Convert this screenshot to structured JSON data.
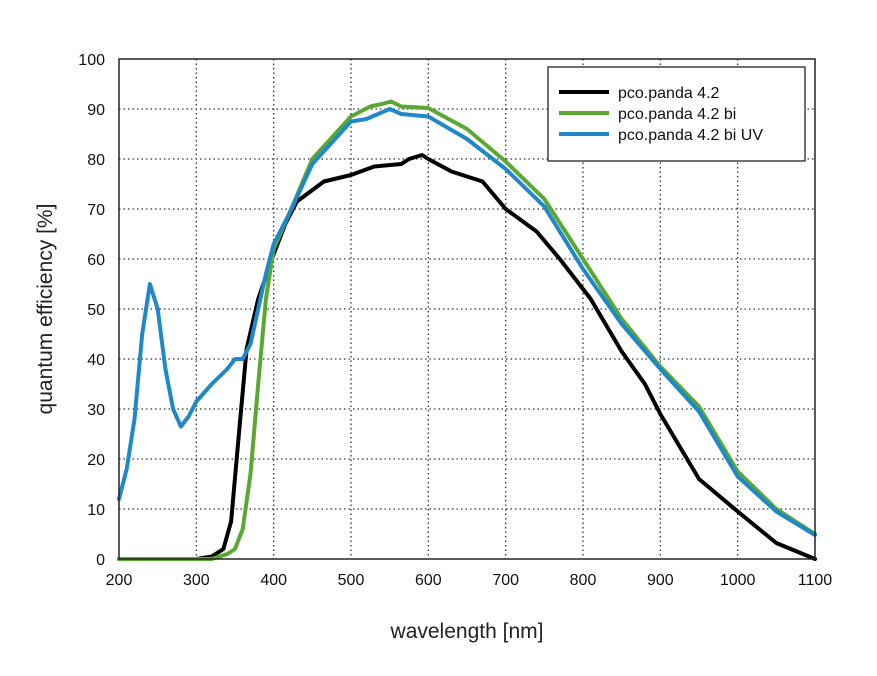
{
  "chart_data": {
    "type": "line",
    "title": "",
    "xlabel": "wavelength [nm]",
    "ylabel": "quantum efficiency [%]",
    "xlim": [
      200,
      1100
    ],
    "ylim": [
      0,
      100
    ],
    "xticks": [
      200,
      300,
      400,
      500,
      600,
      700,
      800,
      900,
      1000,
      1100
    ],
    "yticks": [
      0,
      10,
      20,
      30,
      40,
      50,
      60,
      70,
      80,
      90,
      100
    ],
    "grid": true,
    "legend_position": "top-right",
    "series": [
      {
        "name": "pco.panda 4.2",
        "color": "#000000",
        "points": [
          [
            200,
            0
          ],
          [
            300,
            0
          ],
          [
            320,
            0.5
          ],
          [
            335,
            2
          ],
          [
            345,
            7.5
          ],
          [
            355,
            25
          ],
          [
            365,
            42
          ],
          [
            380,
            52
          ],
          [
            400,
            61
          ],
          [
            415,
            67
          ],
          [
            430,
            71.5
          ],
          [
            465,
            75.5
          ],
          [
            500,
            76.8
          ],
          [
            530,
            78.5
          ],
          [
            565,
            79
          ],
          [
            575,
            80
          ],
          [
            592,
            80.8
          ],
          [
            600,
            80
          ],
          [
            630,
            77.5
          ],
          [
            670,
            75.5
          ],
          [
            700,
            70
          ],
          [
            740,
            65.5
          ],
          [
            770,
            60
          ],
          [
            810,
            52
          ],
          [
            850,
            41.5
          ],
          [
            880,
            35
          ],
          [
            900,
            29
          ],
          [
            950,
            16
          ],
          [
            1000,
            9.5
          ],
          [
            1050,
            3.2
          ],
          [
            1100,
            0
          ]
        ]
      },
      {
        "name": "pco.panda 4.2 bi",
        "color": "#5aa832",
        "points": [
          [
            200,
            0
          ],
          [
            320,
            0
          ],
          [
            340,
            1
          ],
          [
            350,
            2
          ],
          [
            360,
            6
          ],
          [
            370,
            17
          ],
          [
            380,
            35
          ],
          [
            390,
            52
          ],
          [
            400,
            62
          ],
          [
            420,
            69
          ],
          [
            450,
            80
          ],
          [
            500,
            88.5
          ],
          [
            525,
            90.5
          ],
          [
            540,
            91
          ],
          [
            552,
            91.5
          ],
          [
            565,
            90.5
          ],
          [
            600,
            90.2
          ],
          [
            650,
            86
          ],
          [
            700,
            79.5
          ],
          [
            750,
            72
          ],
          [
            800,
            60
          ],
          [
            850,
            48
          ],
          [
            900,
            38.5
          ],
          [
            950,
            30.5
          ],
          [
            1000,
            17.5
          ],
          [
            1050,
            10
          ],
          [
            1100,
            5
          ]
        ]
      },
      {
        "name": "pco.panda 4.2 bi UV",
        "color": "#1e88c8",
        "points": [
          [
            200,
            12
          ],
          [
            210,
            18
          ],
          [
            220,
            28
          ],
          [
            230,
            45
          ],
          [
            240,
            55
          ],
          [
            250,
            50
          ],
          [
            260,
            38
          ],
          [
            270,
            30
          ],
          [
            280,
            26.5
          ],
          [
            290,
            28.5
          ],
          [
            300,
            31.5
          ],
          [
            320,
            35
          ],
          [
            340,
            38
          ],
          [
            350,
            40
          ],
          [
            360,
            40
          ],
          [
            370,
            43
          ],
          [
            380,
            50
          ],
          [
            390,
            57
          ],
          [
            400,
            63
          ],
          [
            420,
            69
          ],
          [
            450,
            79
          ],
          [
            500,
            87.5
          ],
          [
            520,
            88
          ],
          [
            535,
            89
          ],
          [
            550,
            90
          ],
          [
            565,
            89
          ],
          [
            600,
            88.5
          ],
          [
            650,
            84
          ],
          [
            700,
            78
          ],
          [
            750,
            70.5
          ],
          [
            800,
            58
          ],
          [
            850,
            47
          ],
          [
            900,
            38
          ],
          [
            950,
            29.5
          ],
          [
            1000,
            16.5
          ],
          [
            1050,
            9.5
          ],
          [
            1100,
            4.8
          ]
        ]
      }
    ]
  }
}
